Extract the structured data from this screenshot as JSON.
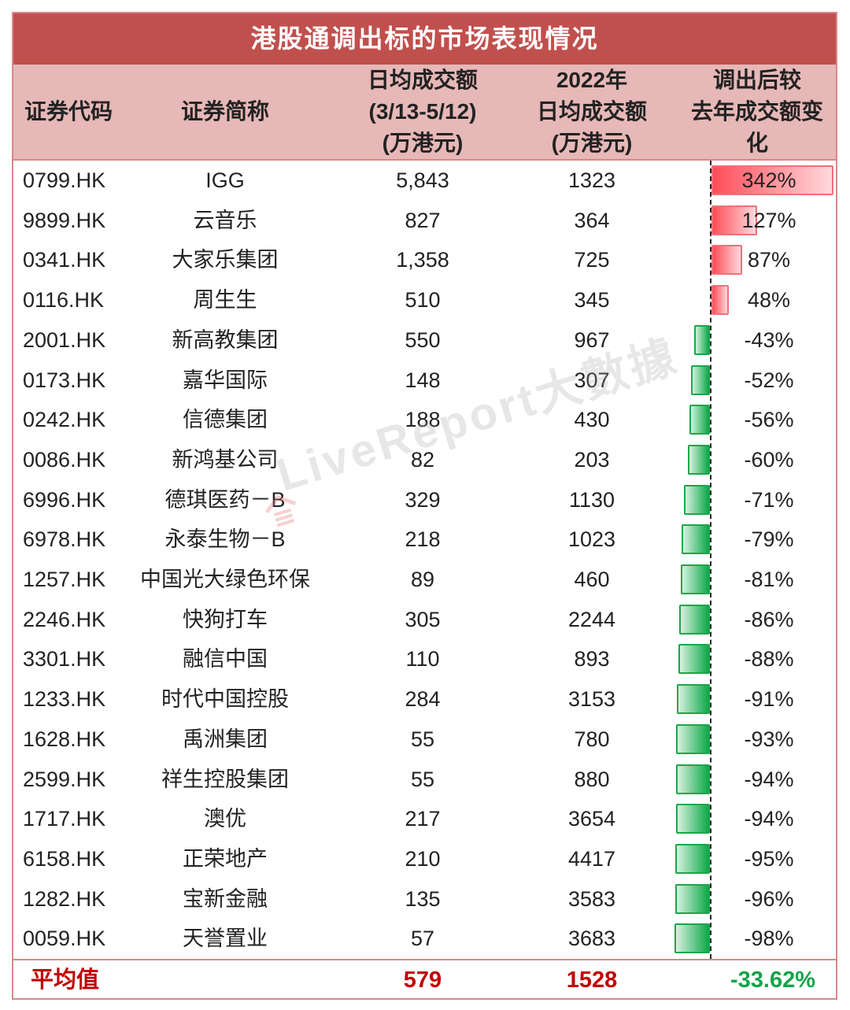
{
  "title": "港股通调出标的市场表现情况",
  "header": {
    "code": [
      "证券代码"
    ],
    "name": [
      "证券简称"
    ],
    "avg_recent": [
      "日均成交额",
      "(3/13-5/12)",
      "(万港元)"
    ],
    "avg_2022": [
      "2022年",
      "日均成交额",
      "(万港元)"
    ],
    "change": [
      "调出后较",
      "去年成交额变",
      "化"
    ]
  },
  "rows": [
    {
      "code": "0799.HK",
      "name": "IGG",
      "avg_recent": "5,843",
      "avg_2022": "1323",
      "change": "342%",
      "change_value": 342
    },
    {
      "code": "9899.HK",
      "name": "云音乐",
      "avg_recent": "827",
      "avg_2022": "364",
      "change": "127%",
      "change_value": 127
    },
    {
      "code": "0341.HK",
      "name": "大家乐集团",
      "avg_recent": "1,358",
      "avg_2022": "725",
      "change": "87%",
      "change_value": 87
    },
    {
      "code": "0116.HK",
      "name": "周生生",
      "avg_recent": "510",
      "avg_2022": "345",
      "change": "48%",
      "change_value": 48
    },
    {
      "code": "2001.HK",
      "name": "新高教集团",
      "avg_recent": "550",
      "avg_2022": "967",
      "change": "-43%",
      "change_value": -43
    },
    {
      "code": "0173.HK",
      "name": "嘉华国际",
      "avg_recent": "148",
      "avg_2022": "307",
      "change": "-52%",
      "change_value": -52
    },
    {
      "code": "0242.HK",
      "name": "信德集团",
      "avg_recent": "188",
      "avg_2022": "430",
      "change": "-56%",
      "change_value": -56
    },
    {
      "code": "0086.HK",
      "name": "新鸿基公司",
      "avg_recent": "82",
      "avg_2022": "203",
      "change": "-60%",
      "change_value": -60
    },
    {
      "code": "6996.HK",
      "name": "德琪医药－B",
      "avg_recent": "329",
      "avg_2022": "1130",
      "change": "-71%",
      "change_value": -71
    },
    {
      "code": "6978.HK",
      "name": "永泰生物－B",
      "avg_recent": "218",
      "avg_2022": "1023",
      "change": "-79%",
      "change_value": -79
    },
    {
      "code": "1257.HK",
      "name": "中国光大绿色环保",
      "avg_recent": "89",
      "avg_2022": "460",
      "change": "-81%",
      "change_value": -81
    },
    {
      "code": "2246.HK",
      "name": "快狗打车",
      "avg_recent": "305",
      "avg_2022": "2244",
      "change": "-86%",
      "change_value": -86
    },
    {
      "code": "3301.HK",
      "name": "融信中国",
      "avg_recent": "110",
      "avg_2022": "893",
      "change": "-88%",
      "change_value": -88
    },
    {
      "code": "1233.HK",
      "name": "时代中国控股",
      "avg_recent": "284",
      "avg_2022": "3153",
      "change": "-91%",
      "change_value": -91
    },
    {
      "code": "1628.HK",
      "name": "禹洲集团",
      "avg_recent": "55",
      "avg_2022": "780",
      "change": "-93%",
      "change_value": -93
    },
    {
      "code": "2599.HK",
      "name": "祥生控股集团",
      "avg_recent": "55",
      "avg_2022": "880",
      "change": "-94%",
      "change_value": -94
    },
    {
      "code": "1717.HK",
      "name": "澳优",
      "avg_recent": "217",
      "avg_2022": "3654",
      "change": "-94%",
      "change_value": -94
    },
    {
      "code": "6158.HK",
      "name": "正荣地产",
      "avg_recent": "210",
      "avg_2022": "4417",
      "change": "-95%",
      "change_value": -95
    },
    {
      "code": "1282.HK",
      "name": "宝新金融",
      "avg_recent": "135",
      "avg_2022": "3583",
      "change": "-96%",
      "change_value": -96
    },
    {
      "code": "0059.HK",
      "name": "天誉置业",
      "avg_recent": "57",
      "avg_2022": "3683",
      "change": "-98%",
      "change_value": -98
    }
  ],
  "average": {
    "label": "平均值",
    "avg_recent": "579",
    "avg_2022": "1528",
    "change": "-33.62%"
  },
  "watermark": "LiveReport大數據",
  "colors": {
    "title_bg": "#c0504d",
    "header_bg": "#e6b8b7",
    "border": "#d9888b",
    "positive_bar": "#ff4d58",
    "negative_bar": "#0ea94a",
    "average_text": "#c00000",
    "average_change": "#14a34a"
  },
  "chart_data": {
    "type": "table",
    "title": "港股通调出标的市场表现情况",
    "columns": [
      "证券代码",
      "证券简称",
      "日均成交额(3/13-5/12)(万港元)",
      "2022年日均成交额(万港元)",
      "调出后较去年成交额变化"
    ],
    "categories": [
      "0799.HK",
      "9899.HK",
      "0341.HK",
      "0116.HK",
      "2001.HK",
      "0173.HK",
      "0242.HK",
      "0086.HK",
      "6996.HK",
      "6978.HK",
      "1257.HK",
      "2246.HK",
      "3301.HK",
      "1233.HK",
      "1628.HK",
      "2599.HK",
      "1717.HK",
      "6158.HK",
      "1282.HK",
      "0059.HK"
    ],
    "series": [
      {
        "name": "日均成交额(3/13-5/12)(万港元)",
        "values": [
          5843,
          827,
          1358,
          510,
          550,
          148,
          188,
          82,
          329,
          218,
          89,
          305,
          110,
          284,
          55,
          55,
          217,
          210,
          135,
          57
        ]
      },
      {
        "name": "2022年日均成交额(万港元)",
        "values": [
          1323,
          364,
          725,
          345,
          967,
          307,
          430,
          203,
          1130,
          1023,
          460,
          2244,
          893,
          3153,
          780,
          880,
          3654,
          4417,
          3583,
          3683
        ]
      },
      {
        "name": "调出后较去年成交额变化(%)",
        "values": [
          342,
          127,
          87,
          48,
          -43,
          -52,
          -56,
          -60,
          -71,
          -79,
          -81,
          -86,
          -88,
          -91,
          -93,
          -94,
          -94,
          -95,
          -96,
          -98
        ],
        "display": "data-bar"
      }
    ],
    "average": {
      "日均成交额(3/13-5/12)": 579,
      "2022年日均成交额": 1528,
      "变化": -33.62
    }
  }
}
